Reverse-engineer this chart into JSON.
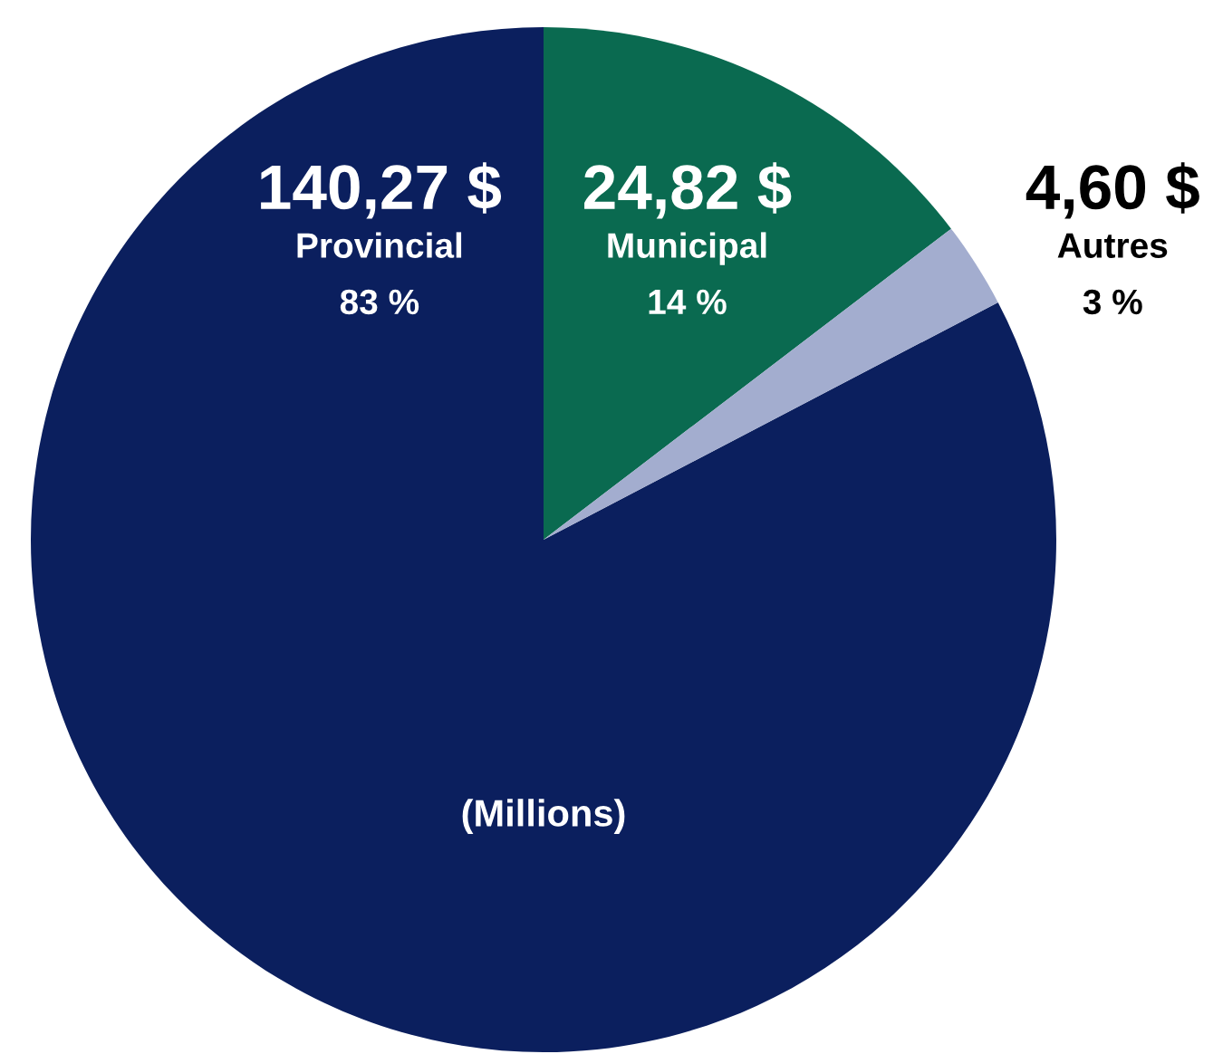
{
  "chart_data": {
    "type": "pie",
    "categories": [
      "Provincial",
      "Municipal",
      "Autres"
    ],
    "values": [
      140.27,
      24.82,
      4.6
    ],
    "value_labels": [
      "140,27 $",
      "24,82 $",
      "4,60 $"
    ],
    "colors": [
      "#0b1f5e",
      "#0a6a50",
      "#a3adcf"
    ],
    "annotations": [
      "83 %",
      "14 %",
      "3 %",
      "(Millions)"
    ]
  }
}
